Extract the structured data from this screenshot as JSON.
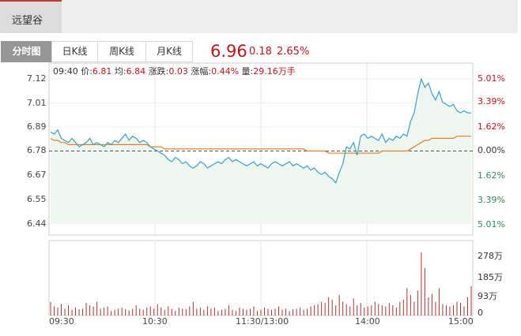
{
  "header": {
    "stock_tab": "远望谷"
  },
  "tabs": [
    {
      "label": "分时图",
      "active": true
    },
    {
      "label": "日K线",
      "active": false
    },
    {
      "label": "周K线",
      "active": false
    },
    {
      "label": "月K线",
      "active": false
    }
  ],
  "quote": {
    "price": "6.96",
    "change": "0.18",
    "change_pct": "2.65%"
  },
  "info": {
    "time": "09:40",
    "price_label": "价:",
    "price": "6.81",
    "avg_label": "均:",
    "avg": "6.84",
    "change_label": "涨跌:",
    "change": "0.03",
    "pct_label": "涨幅:",
    "pct": "0.44%",
    "vol_label": "量:",
    "vol": "29.16万手"
  },
  "axes": {
    "price_ticks": [
      "7.12",
      "7.01",
      "6.89",
      "6.78",
      "6.67",
      "6.55",
      "6.44"
    ],
    "pct_ticks": [
      "5.01%",
      "3.39%",
      "1.62%",
      "0.00%",
      "1.62%",
      "3.39%",
      "5.01%"
    ],
    "volume_ticks": [
      "278万",
      "185万",
      "93万",
      "0"
    ],
    "time_ticks": [
      "09:30",
      "10:30",
      "11:30/13:00",
      "14:00",
      "15:00"
    ]
  },
  "colors": {
    "up": "#c0141b",
    "down": "#2e8b57",
    "price_line": "#3aa0c8",
    "avg_line": "#e67e22",
    "volume": "#b03030",
    "area": "#eef7ef"
  },
  "chart_data": {
    "type": "line",
    "prev_close": 6.78,
    "price_range": [
      6.44,
      7.12
    ],
    "series": [
      {
        "values": [
          6.87,
          6.86,
          6.88,
          6.84,
          6.83,
          6.82,
          6.84,
          6.82,
          6.8,
          6.81,
          6.82,
          6.84,
          6.81,
          6.82,
          6.81,
          6.8,
          6.82,
          6.81,
          6.83,
          6.82,
          6.84,
          6.86,
          6.83,
          6.85,
          6.84,
          6.82,
          6.83,
          6.82,
          6.8,
          6.79,
          6.78,
          6.77,
          6.76,
          6.74,
          6.73,
          6.75,
          6.74,
          6.72,
          6.73,
          6.71,
          6.7,
          6.71,
          6.73,
          6.72,
          6.7,
          6.71,
          6.72,
          6.73,
          6.72,
          6.74,
          6.75,
          6.73,
          6.74,
          6.73,
          6.72,
          6.71,
          6.72,
          6.73,
          6.71,
          6.72,
          6.71,
          6.7,
          6.72,
          6.73,
          6.72,
          6.71,
          6.72,
          6.73,
          6.71,
          6.72,
          6.71,
          6.7,
          6.71,
          6.69,
          6.7,
          6.68,
          6.67,
          6.68,
          6.66,
          6.65,
          6.63,
          6.68,
          6.72,
          6.8,
          6.79,
          6.82,
          6.76,
          6.85,
          6.86,
          6.84,
          6.85,
          6.84,
          6.83,
          6.86,
          6.82,
          6.84,
          6.83,
          6.85,
          6.84,
          6.86,
          6.85,
          6.92,
          6.96,
          7.05,
          7.12,
          7.08,
          7.1,
          7.05,
          7.02,
          7.06,
          7.01,
          7.0,
          6.99,
          7.0,
          6.97,
          6.96,
          6.97,
          6.96,
          6.96
        ]
      },
      {
        "values": [
          6.84,
          6.83,
          6.83,
          6.82,
          6.82,
          6.81,
          6.81,
          6.81,
          6.81,
          6.81,
          6.81,
          6.81,
          6.81,
          6.81,
          6.81,
          6.81,
          6.81,
          6.81,
          6.81,
          6.81,
          6.81,
          6.81,
          6.81,
          6.81,
          6.81,
          6.81,
          6.81,
          6.81,
          6.8,
          6.8,
          6.8,
          6.8,
          6.79,
          6.79,
          6.79,
          6.79,
          6.79,
          6.79,
          6.79,
          6.79,
          6.79,
          6.79,
          6.79,
          6.79,
          6.79,
          6.79,
          6.79,
          6.79,
          6.79,
          6.79,
          6.79,
          6.79,
          6.79,
          6.79,
          6.79,
          6.79,
          6.79,
          6.79,
          6.79,
          6.79,
          6.79,
          6.79,
          6.79,
          6.79,
          6.79,
          6.79,
          6.79,
          6.79,
          6.79,
          6.79,
          6.79,
          6.79,
          6.78,
          6.78,
          6.78,
          6.78,
          6.78,
          6.78,
          6.77,
          6.77,
          6.77,
          6.77,
          6.77,
          6.77,
          6.77,
          6.77,
          6.77,
          6.77,
          6.77,
          6.77,
          6.77,
          6.77,
          6.77,
          6.78,
          6.78,
          6.78,
          6.78,
          6.78,
          6.78,
          6.78,
          6.78,
          6.79,
          6.8,
          6.81,
          6.82,
          6.83,
          6.83,
          6.84,
          6.84,
          6.84,
          6.84,
          6.84,
          6.84,
          6.84,
          6.85,
          6.85,
          6.85,
          6.85,
          6.85
        ]
      }
    ],
    "volume_max": 278,
    "volume": [
      60,
      40,
      35,
      50,
      30,
      45,
      25,
      35,
      28,
      30,
      55,
      45,
      40,
      60,
      30,
      35,
      40,
      20,
      25,
      30,
      35,
      28,
      22,
      30,
      45,
      30,
      25,
      35,
      40,
      30,
      50,
      35,
      25,
      40,
      30,
      20,
      35,
      30,
      28,
      40,
      60,
      30,
      35,
      25,
      40,
      30,
      35,
      20,
      25,
      30,
      45,
      25,
      20,
      35,
      30,
      25,
      30,
      40,
      20,
      25,
      35,
      30,
      25,
      30,
      40,
      25,
      30,
      20,
      28,
      30,
      35,
      25,
      30,
      40,
      45,
      50,
      60,
      55,
      80,
      70,
      45,
      90,
      60,
      50,
      40,
      75,
      45,
      55,
      35,
      40,
      45,
      60,
      50,
      45,
      40,
      55,
      45,
      35,
      60,
      70,
      120,
      90,
      60,
      110,
      278,
      210,
      80,
      95,
      60,
      120,
      50,
      45,
      40,
      45,
      60,
      55,
      40,
      80,
      130
    ]
  }
}
